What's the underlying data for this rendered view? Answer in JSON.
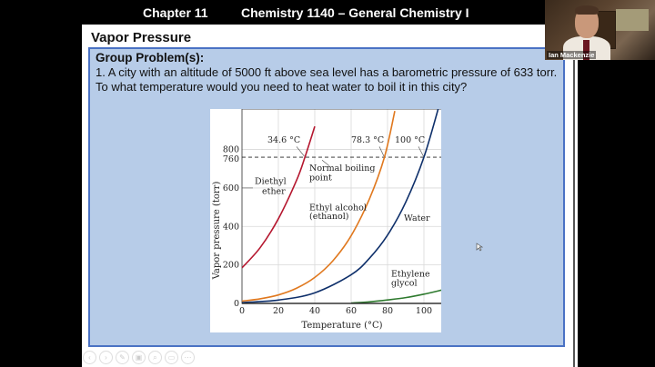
{
  "header": {
    "chapter": "Chapter 11",
    "course": "Chemistry 1140 – General Chemistry I"
  },
  "webcam": {
    "presenter_name": "Ian Mackenzie"
  },
  "slide": {
    "title": "Vapor Pressure",
    "problem": {
      "heading": "Group Problem(s):",
      "text": "1. A city with an altitude of 5000 ft above sea level has a barometric pressure of 633 torr. To what temperature would you need to heat water to boil it in this city?"
    }
  },
  "controls": {
    "buttons": [
      {
        "name": "previous-slide-button",
        "glyph": "‹"
      },
      {
        "name": "next-slide-button",
        "glyph": "›"
      },
      {
        "name": "pen-tool-button",
        "glyph": "✎"
      },
      {
        "name": "see-all-slides-button",
        "glyph": "▣"
      },
      {
        "name": "zoom-button",
        "glyph": "⌕"
      },
      {
        "name": "subtitles-button",
        "glyph": "▭"
      },
      {
        "name": "more-options-button",
        "glyph": "⋯"
      }
    ]
  },
  "chart_data": {
    "type": "line",
    "title": "",
    "xlabel": "Temperature (°C)",
    "ylabel": "Vapor pressure (torr)",
    "xlim": [
      0,
      110
    ],
    "ylim": [
      0,
      1050
    ],
    "xticks": [
      0,
      20,
      40,
      60,
      80,
      100
    ],
    "yticks": [
      0,
      200,
      400,
      600,
      760,
      800
    ],
    "grid": true,
    "reference_line": {
      "y": 760,
      "style": "dashed",
      "label": "Normal boiling point"
    },
    "series": [
      {
        "name": "Diethyl ether",
        "color": "#b5172f",
        "boiling_point_label": "34.6 °C",
        "x": [
          0,
          10,
          20,
          30,
          34.6,
          40
        ],
        "y": [
          185,
          290,
          440,
          640,
          760,
          920
        ]
      },
      {
        "name": "Ethyl alcohol (ethanol)",
        "color": "#e0781e",
        "boiling_point_label": "78.3 °C",
        "x": [
          0,
          10,
          20,
          30,
          40,
          50,
          60,
          70,
          78.3,
          84
        ],
        "y": [
          12,
          24,
          44,
          79,
          135,
          222,
          352,
          542,
          760,
          1000
        ]
      },
      {
        "name": "Water",
        "color": "#0e2f6a",
        "boiling_point_label": "100 °C",
        "x": [
          0,
          20,
          40,
          60,
          70,
          80,
          90,
          100,
          109
        ],
        "y": [
          4.6,
          17.5,
          55,
          149,
          234,
          355,
          526,
          760,
          1050
        ]
      },
      {
        "name": "Ethylene glycol",
        "color": "#2e7a2e",
        "x": [
          60,
          70,
          80,
          90,
          100,
          110
        ],
        "y": [
          2,
          8,
          18,
          30,
          48,
          70
        ]
      }
    ],
    "labels": {
      "diethyl": [
        "Diethyl",
        "ether"
      ],
      "ethanol": [
        "Ethyl alcohol",
        "(ethanol)"
      ],
      "water": "Water",
      "glycol": [
        "Ethylene",
        "glycol"
      ],
      "nbp": [
        "Normal boiling",
        "point"
      ],
      "bp_ether": "34.6 °C",
      "bp_ethanol": "78.3 °C",
      "bp_water": "100 °C"
    }
  }
}
